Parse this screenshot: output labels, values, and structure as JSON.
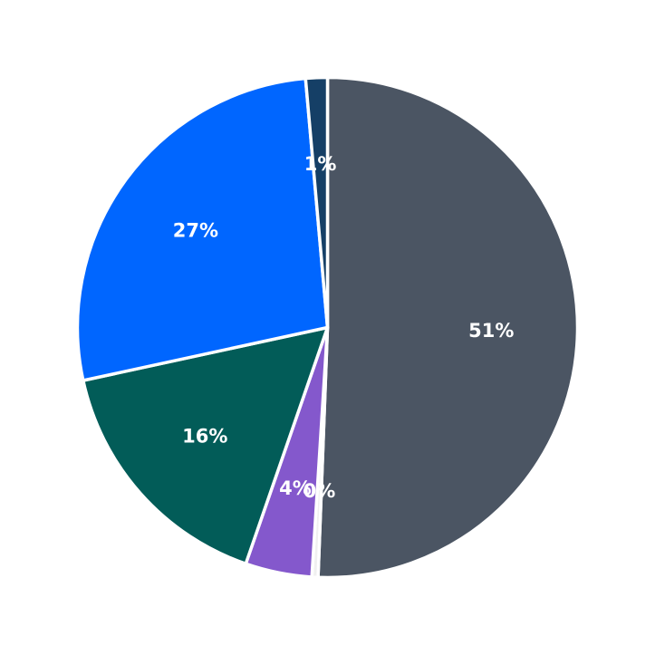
{
  "chart_data": {
    "type": "pie",
    "title": "",
    "start": "top",
    "direction": "clockwise",
    "slices": [
      {
        "value": 50.6,
        "label": "51%",
        "color": "#4b5563"
      },
      {
        "value": 0.4,
        "label": "0%",
        "color": "#f0f0f0"
      },
      {
        "value": 4.3,
        "label": "4%",
        "color": "#8458cc"
      },
      {
        "value": 16.3,
        "label": "16%",
        "color": "#025c58"
      },
      {
        "value": 27.0,
        "label": "27%",
        "color": "#0066ff"
      },
      {
        "value": 1.4,
        "label": "1%",
        "color": "#153f66"
      }
    ]
  }
}
